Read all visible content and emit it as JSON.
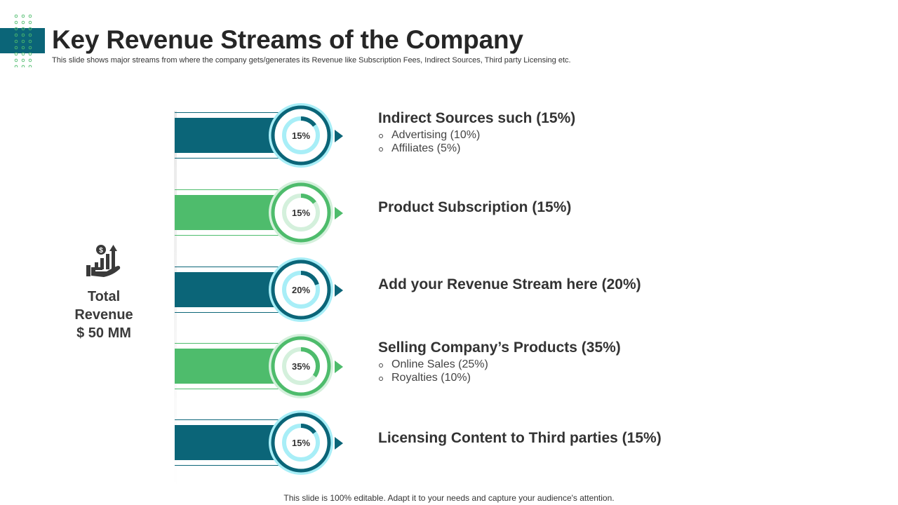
{
  "header": {
    "title": "Key Revenue Streams of the Company",
    "subtitle": "This slide shows major streams from where the company gets/generates its Revenue like Subscription Fees, Indirect Sources, Third party Licensing etc."
  },
  "total": {
    "label_line1": "Total",
    "label_line2": "Revenue",
    "label_line3": "$ 50 MM",
    "icon": "revenue-growth-hand-icon"
  },
  "colors": {
    "teal": "#0b6578",
    "green": "#4ebc6c",
    "light_teal": "#a8eef7",
    "light_green": "#d4f0dc"
  },
  "streams": [
    {
      "pct_label": "15%",
      "pct": 15,
      "color": "teal",
      "heading": "Indirect Sources such (15%)",
      "subs": [
        "Advertising (10%)",
        "Affiliates (5%)"
      ]
    },
    {
      "pct_label": "15%",
      "pct": 15,
      "color": "green",
      "heading": "Product Subscription (15%)",
      "subs": []
    },
    {
      "pct_label": "20%",
      "pct": 20,
      "color": "teal",
      "heading": "Add your Revenue Stream here (20%)",
      "subs": []
    },
    {
      "pct_label": "35%",
      "pct": 35,
      "color": "green",
      "heading": "Selling Company’s Products (35%)",
      "subs": [
        "Online Sales (25%)",
        "Royalties (10%)"
      ]
    },
    {
      "pct_label": "15%",
      "pct": 15,
      "color": "teal",
      "heading": "Licensing Content to Third parties (15%)",
      "subs": []
    }
  ],
  "footer": {
    "text": "This slide is 100% editable. Adapt it to your needs and capture your audience's attention."
  }
}
